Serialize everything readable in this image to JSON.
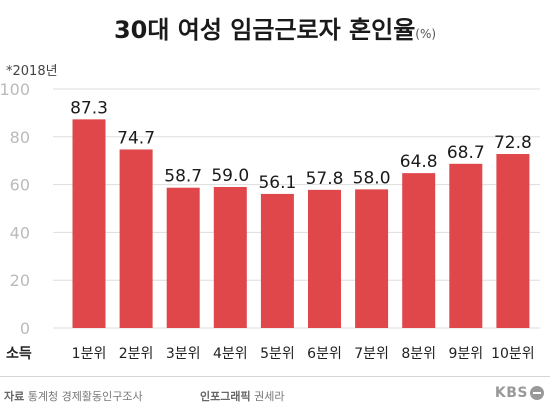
{
  "title": "30대 여성 임금근로자 혼인율",
  "title_unit": "(%)",
  "note": "*2018년",
  "footer": {
    "source_label": "자료",
    "source": "통계청 경제활동인구조사",
    "credit_label": "인포그래픽",
    "credit": "권세라",
    "logo": "KBS"
  },
  "colors": {
    "bar": "#e0474b",
    "grid": "#dddddd",
    "axis_text": "#bbbbbb"
  },
  "chart_data": {
    "type": "bar",
    "x_axis_name": "소득",
    "categories": [
      "1분위",
      "2분위",
      "3분위",
      "4분위",
      "5분위",
      "6분위",
      "7분위",
      "8분위",
      "9분위",
      "10분위"
    ],
    "values": [
      87.3,
      74.7,
      58.7,
      59.0,
      56.1,
      57.8,
      58.0,
      64.8,
      68.7,
      72.8
    ],
    "value_labels": [
      "87.3",
      "74.7",
      "58.7",
      "59.0",
      "56.1",
      "57.8",
      "58.0",
      "64.8",
      "68.7",
      "72.8"
    ],
    "ylim": [
      0,
      100
    ],
    "yticks": [
      0,
      20,
      40,
      60,
      80,
      100
    ],
    "grid": true
  }
}
